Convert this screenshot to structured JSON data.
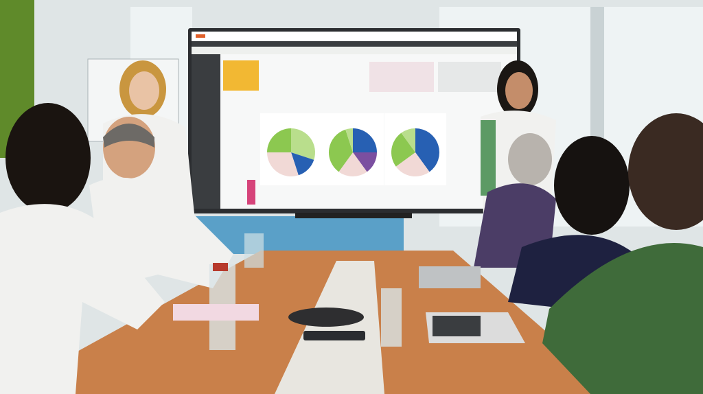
{
  "scene": {
    "description_tags": [
      "meeting-room",
      "presentation-screen",
      "conference-table",
      "people"
    ],
    "colors": {
      "wall": "#dfe5e6",
      "accent_wall": "#5f8a2a",
      "window_blinds": "#eef3f4",
      "screen_bezel": "#2b2d30",
      "screen_bg": "#f7f8f8",
      "screen_sidebar": "#3a3d40",
      "table": "#c9804a",
      "table_stripe": "#e8e6e0",
      "lab_coat": "#f1f1ef",
      "sweater_green": "#3f6b3a",
      "sweater_navy": "#1e2140",
      "sweater_purple": "#4b3d66"
    }
  },
  "screen": {
    "pie_charts": [
      {
        "slices": [
          {
            "fraction": 0.3,
            "color": "#b9de8c"
          },
          {
            "fraction": 0.15,
            "color": "#2760b3"
          },
          {
            "fraction": 0.3,
            "color": "#f1d9d6"
          },
          {
            "fraction": 0.25,
            "color": "#8cc850"
          }
        ]
      },
      {
        "slices": [
          {
            "fraction": 0.25,
            "color": "#2760b3"
          },
          {
            "fraction": 0.15,
            "color": "#7b4fa0"
          },
          {
            "fraction": 0.2,
            "color": "#f1d9d6"
          },
          {
            "fraction": 0.35,
            "color": "#8cc850"
          },
          {
            "fraction": 0.05,
            "color": "#b9de8c"
          }
        ]
      },
      {
        "slices": [
          {
            "fraction": 0.4,
            "color": "#2760b3"
          },
          {
            "fraction": 0.25,
            "color": "#f1d9d6"
          },
          {
            "fraction": 0.25,
            "color": "#8cc850"
          },
          {
            "fraction": 0.1,
            "color": "#b9de8c"
          }
        ]
      }
    ]
  }
}
